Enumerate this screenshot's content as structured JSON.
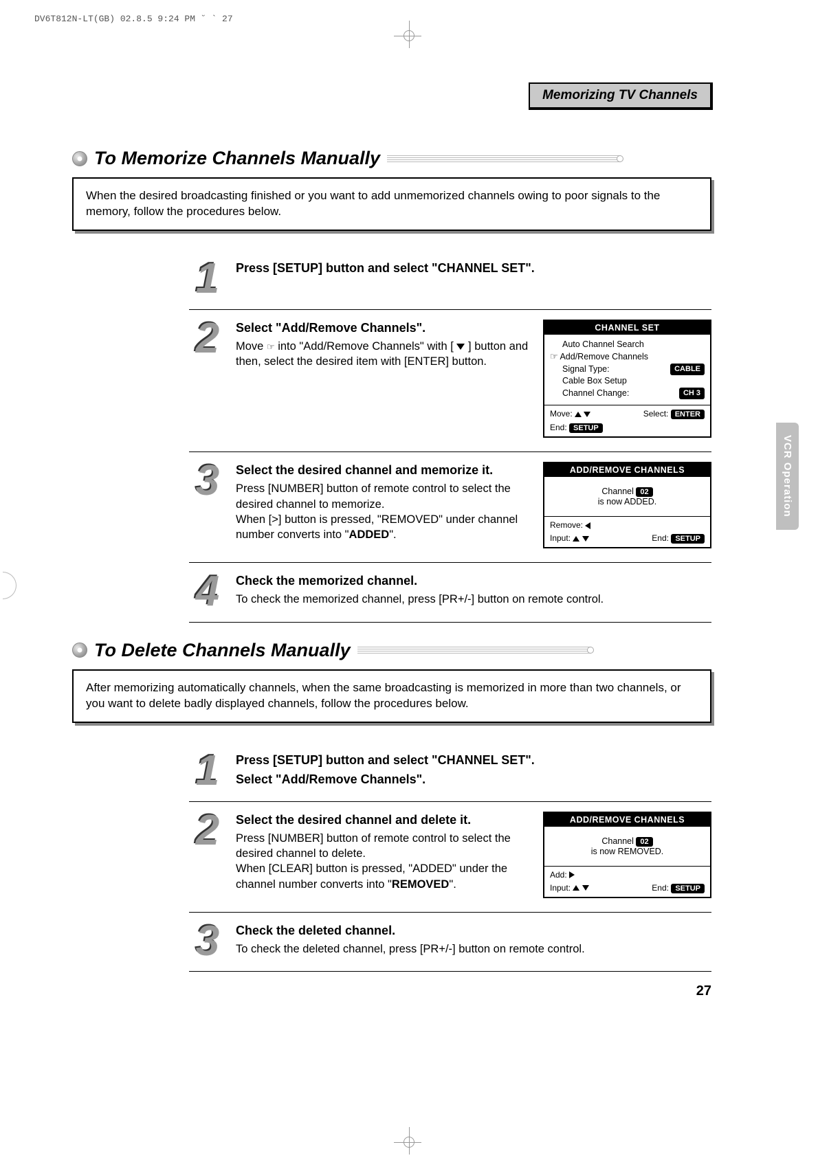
{
  "meta": {
    "header_line": "DV6T812N-LT(GB)  02.8.5 9:24 PM  ˘  `  27",
    "page_number": "27",
    "side_tab": "VCR Operation",
    "tab_header": "Memorizing TV Channels"
  },
  "section_memorize": {
    "title": "To Memorize Channels Manually",
    "intro": "When the desired broadcasting finished or you want to add unmemorized channels owing to poor signals to the memory, follow the procedures below.",
    "steps": [
      {
        "n": "1",
        "title": "Press [SETUP] button and select \"CHANNEL SET\".",
        "body": ""
      },
      {
        "n": "2",
        "title": "Select \"Add/Remove Channels\".",
        "body_pre": "Move ",
        "body_mid": " into \"Add/Remove Channels\" with [ ",
        "body_post": " ] button and then, select the desired item with [ENTER] button."
      },
      {
        "n": "3",
        "title": "Select the desired channel and memorize it.",
        "body1": "Press [NUMBER] button of remote control to select the desired channel to memorize.",
        "body2_pre": "When [>] button is pressed, \"REMOVED\" under channel number converts into \"",
        "body2_bold": "ADDED",
        "body2_post": "\"."
      },
      {
        "n": "4",
        "title": "Check the memorized channel.",
        "body": "To check the memorized channel, press [PR+/-] button on remote control."
      }
    ]
  },
  "section_delete": {
    "title": "To Delete Channels Manually",
    "intro": "After memorizing automatically channels, when the same broadcasting is memorized in more than two channels, or you want to delete badly displayed channels, follow the procedures below.",
    "steps": [
      {
        "n": "1",
        "title1": "Press [SETUP] button and select \"CHANNEL SET\".",
        "title2": "Select \"Add/Remove Channels\"."
      },
      {
        "n": "2",
        "title": "Select the desired channel and delete it.",
        "body1": "Press [NUMBER] button of remote control to select the desired channel to delete.",
        "body2_pre": "When [CLEAR] button is pressed, \"ADDED\" under the channel number converts into \"",
        "body2_bold": "REMOVED",
        "body2_post": "\"."
      },
      {
        "n": "3",
        "title": "Check the deleted channel.",
        "body": "To check the deleted channel, press [PR+/-] button on remote control."
      }
    ]
  },
  "osd_channel_set": {
    "title": "CHANNEL SET",
    "items": {
      "auto": "Auto Channel Search",
      "addremove": "Add/Remove Channels",
      "signal_label": "Signal Type:",
      "signal_value": "CABLE",
      "cablebox": "Cable Box Setup",
      "change_label": "Channel Change:",
      "change_value": "CH 3"
    },
    "status": {
      "move": "Move:",
      "select": "Select:",
      "select_val": "ENTER",
      "end": "End:",
      "end_val": "SETUP"
    }
  },
  "osd_add": {
    "title": "ADD/REMOVE CHANNELS",
    "line1_pre": "Channel ",
    "line1_val": "02",
    "line2": "is now ADDED.",
    "status": {
      "remove": "Remove:",
      "input": "Input:",
      "end": "End:",
      "end_val": "SETUP"
    }
  },
  "osd_remove": {
    "title": "ADD/REMOVE CHANNELS",
    "line1_pre": "Channel ",
    "line1_val": "02",
    "line2": "is now REMOVED.",
    "status": {
      "add": "Add:",
      "input": "Input:",
      "end": "End:",
      "end_val": "SETUP"
    }
  },
  "colors": {
    "gray_pill": "#000000",
    "shadow": "#888888",
    "side_tab_bg": "#bfbfbf"
  }
}
